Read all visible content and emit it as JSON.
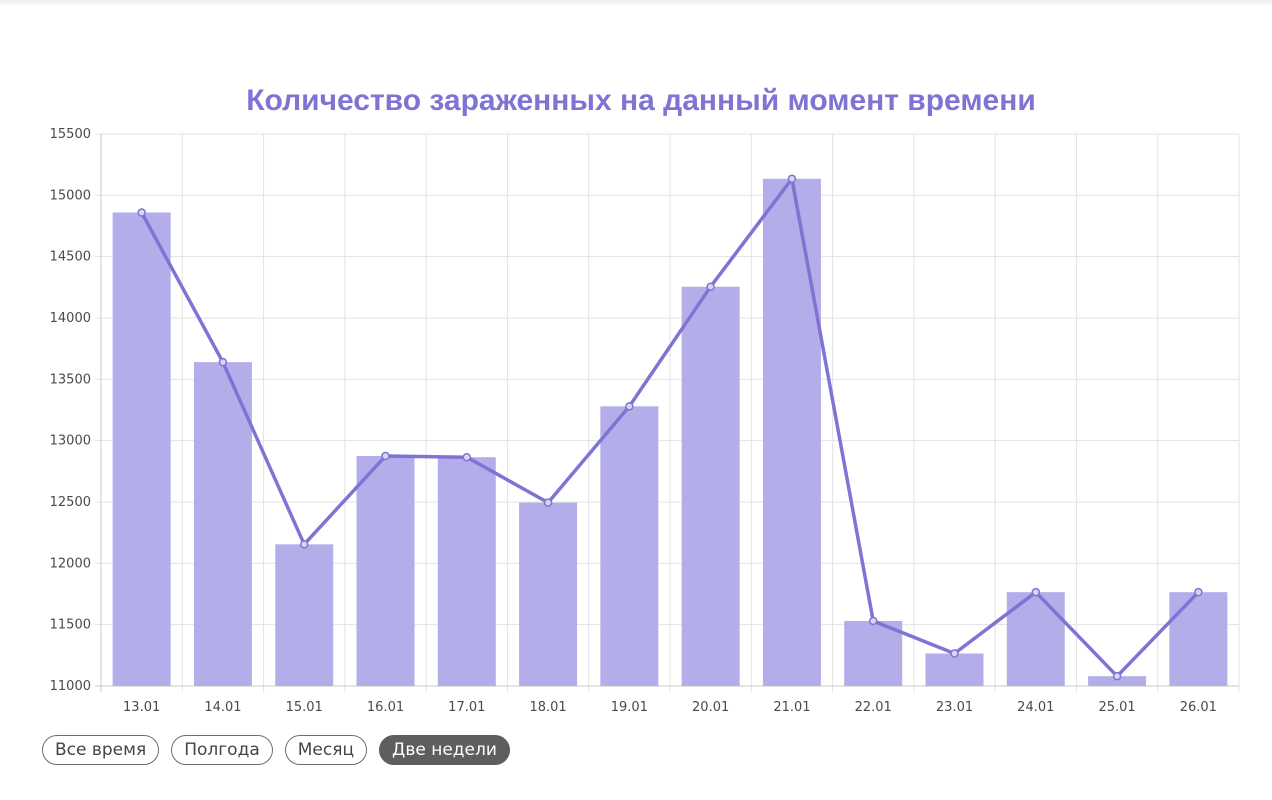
{
  "chart_data": {
    "type": "bar",
    "title": "Количество зараженных на данный момент времени",
    "categories": [
      "13.01",
      "14.01",
      "15.01",
      "16.01",
      "17.01",
      "18.01",
      "19.01",
      "20.01",
      "21.01",
      "22.01",
      "23.01",
      "24.01",
      "25.01",
      "26.01"
    ],
    "series": [
      {
        "type": "bar",
        "values": [
          14860,
          13640,
          12155,
          12875,
          12865,
          12495,
          13280,
          14255,
          15135,
          11530,
          11265,
          11765,
          11080,
          11765
        ]
      },
      {
        "type": "line",
        "values": [
          14860,
          13640,
          12155,
          12875,
          12865,
          12495,
          13280,
          14255,
          15135,
          11530,
          11265,
          11765,
          11080,
          11765
        ]
      }
    ],
    "y_ticks": [
      "15500",
      "15000",
      "14500",
      "14000",
      "13500",
      "13000",
      "12500",
      "12000",
      "11500",
      "11000"
    ],
    "ylim": [
      11000,
      15500
    ],
    "grid": true,
    "colors": {
      "bar": "#b3aeea",
      "line": "#7f74d3",
      "title": "#7f74d3"
    }
  },
  "filters": {
    "all_time": "Все время",
    "half_year": "Полгода",
    "month": "Месяц",
    "two_weeks": "Две недели"
  },
  "active_filter": "two_weeks"
}
